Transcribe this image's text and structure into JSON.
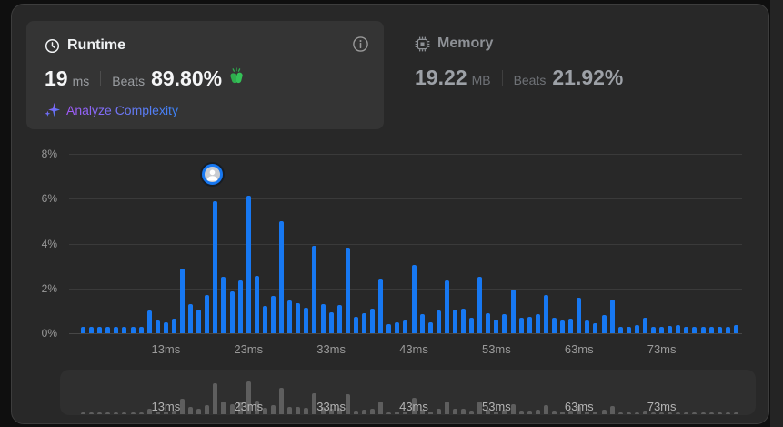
{
  "runtime_card": {
    "title": "Runtime",
    "value": "19",
    "unit": "ms",
    "beats_label": "Beats",
    "beats_value": "89.80%",
    "analyze_label": "Analyze Complexity"
  },
  "memory_card": {
    "title": "Memory",
    "value": "19.22",
    "unit": "MB",
    "beats_label": "Beats",
    "beats_value": "21.92%"
  },
  "colors": {
    "bar_blue": "#1778f2",
    "panel_bg": "#282828",
    "card_bg": "#343434",
    "clap_green": "#2fad4e",
    "analyze_gradient_start": "#a259f7",
    "analyze_gradient_end": "#3b82f6"
  },
  "chart_data": {
    "type": "bar",
    "title": "Runtime distribution (% of submissions per runtime)",
    "x_unit": "ms",
    "x": [
      3,
      4,
      5,
      6,
      7,
      8,
      9,
      10,
      11,
      12,
      13,
      14,
      15,
      16,
      17,
      18,
      19,
      20,
      21,
      22,
      23,
      24,
      25,
      26,
      27,
      28,
      29,
      30,
      31,
      32,
      33,
      34,
      35,
      36,
      37,
      38,
      39,
      40,
      41,
      42,
      43,
      44,
      45,
      46,
      47,
      48,
      49,
      50,
      51,
      52,
      53,
      54,
      55,
      56,
      57,
      58,
      59,
      60,
      61,
      62,
      63,
      64,
      65,
      66,
      67,
      68,
      69,
      70,
      71,
      72,
      73,
      74,
      75,
      76,
      77,
      78,
      79,
      80,
      81,
      82
    ],
    "values": [
      0.3,
      0.3,
      0.3,
      0.3,
      0.3,
      0.3,
      0.3,
      0.3,
      1.0,
      0.55,
      0.5,
      0.65,
      2.9,
      1.3,
      1.05,
      1.7,
      5.9,
      2.5,
      1.85,
      2.35,
      6.15,
      2.55,
      1.2,
      1.65,
      5.0,
      1.45,
      1.35,
      1.15,
      3.9,
      1.3,
      0.95,
      1.25,
      3.8,
      0.75,
      0.9,
      1.1,
      2.45,
      0.4,
      0.5,
      0.55,
      3.05,
      0.85,
      0.5,
      1.0,
      2.35,
      1.05,
      1.1,
      0.7,
      2.5,
      0.9,
      0.6,
      0.85,
      1.95,
      0.7,
      0.75,
      0.85,
      1.7,
      0.7,
      0.55,
      0.65,
      1.6,
      0.55,
      0.45,
      0.8,
      1.5,
      0.27,
      0.3,
      0.35,
      0.7,
      0.3,
      0.3,
      0.33,
      0.38,
      0.3,
      0.3,
      0.3,
      0.3,
      0.3,
      0.3,
      0.35
    ],
    "marker_ms": 19,
    "ylim": [
      0,
      8
    ],
    "ytick_values": [
      0,
      2,
      4,
      6,
      8
    ],
    "ytick_labels": [
      "0%",
      "2%",
      "4%",
      "6%",
      "8%"
    ],
    "xtick_values": [
      13,
      23,
      33,
      43,
      53,
      63,
      73
    ],
    "xtick_labels": [
      "13ms",
      "23ms",
      "33ms",
      "43ms",
      "53ms",
      "63ms",
      "73ms"
    ],
    "grid": true,
    "legend": false,
    "minimap": {
      "xtick_values": [
        13,
        23,
        33,
        43,
        53,
        63,
        73
      ],
      "xtick_labels": [
        "13ms",
        "23ms",
        "33ms",
        "43ms",
        "53ms",
        "63ms",
        "73ms"
      ]
    }
  }
}
